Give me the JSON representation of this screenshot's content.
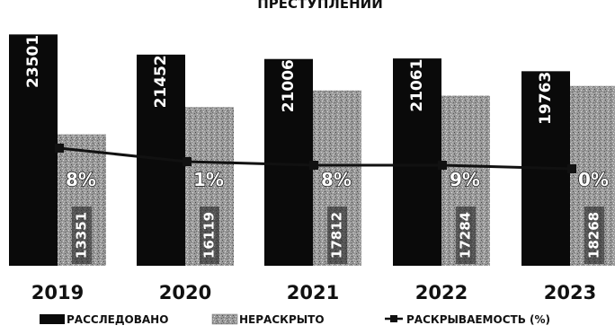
{
  "chart_data": {
    "type": "bar",
    "title": "ПРЕСТУПЛЕНИЙ",
    "categories": [
      "2019",
      "2020",
      "2021",
      "2022",
      "2023"
    ],
    "series": [
      {
        "name": "РАССЛЕДОВАНО",
        "values": [
          23501,
          21452,
          21006,
          21061,
          19763
        ],
        "value_labels": [
          "23501",
          "21452",
          "21006",
          "21061",
          "19763"
        ],
        "color": "#0a0a0a"
      },
      {
        "name": "НЕРАСКРЫТО",
        "values": [
          13351,
          16119,
          17812,
          17284,
          18268
        ],
        "value_labels": [
          "13351",
          "16119",
          "17812",
          "17284",
          "18268"
        ],
        "color": "#9a9a9a"
      },
      {
        "name": "РАСКРЫВАЕМОСТЬ (%)",
        "type": "line",
        "values": [
          null,
          null,
          null,
          null,
          null
        ],
        "value_labels": [
          "8%",
          "1%",
          "8%",
          "9%",
          "0%"
        ],
        "color": "#111111"
      }
    ],
    "legend": [
      "РАССЛЕДОВАНО",
      "НЕРАСКРЫТО",
      "РАСКРЫВАЕМОСТЬ (%)"
    ],
    "legend_position": "bottom",
    "ylim": [
      0,
      27000
    ],
    "grid": false
  }
}
